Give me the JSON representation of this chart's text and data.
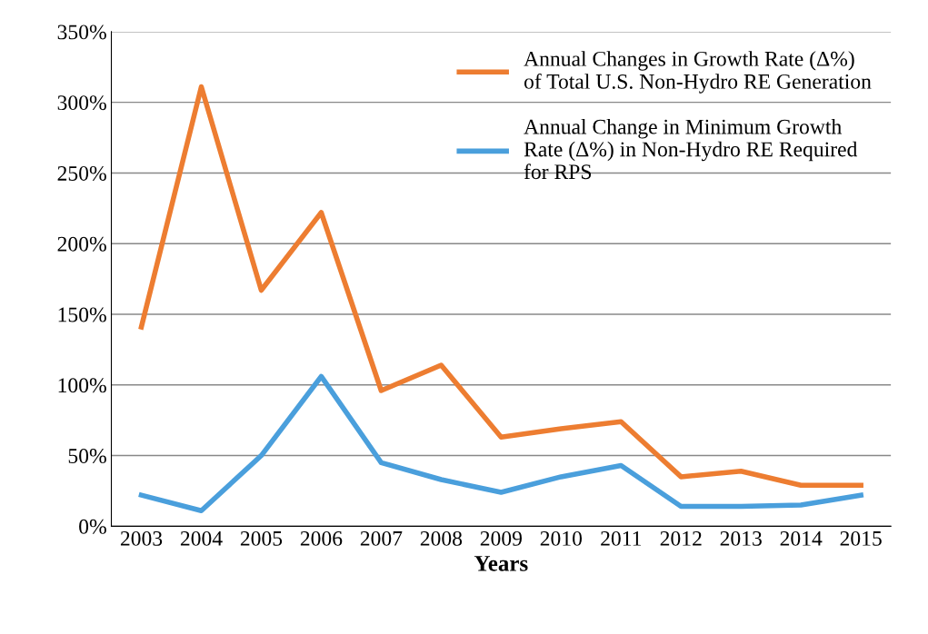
{
  "chart_data": {
    "type": "line",
    "xlabel": "Years",
    "categories": [
      "2003",
      "2004",
      "2005",
      "2006",
      "2007",
      "2008",
      "2009",
      "2010",
      "2011",
      "2012",
      "2013",
      "2014",
      "2015"
    ],
    "series": [
      {
        "name": "Annual Changes in Growth Rate (Δ%)\nof Total U.S. Non-Hydro RE Generation",
        "color": "#ed7d31",
        "values": [
          141,
          311,
          167,
          222,
          96,
          114,
          63,
          69,
          74,
          35,
          39,
          29,
          29
        ]
      },
      {
        "name": "Annual Change in Minimum Growth\nRate (Δ%) in Non-Hydro RE Required\nfor RPS",
        "color": "#4a9fdc",
        "values": [
          22,
          11,
          50,
          106,
          45,
          33,
          24,
          35,
          43,
          14,
          14,
          15,
          22
        ]
      }
    ],
    "ylim": [
      0,
      350
    ],
    "yticks": [
      {
        "value": 0,
        "label": "0%"
      },
      {
        "value": 50,
        "label": "50%"
      },
      {
        "value": 100,
        "label": "100%"
      },
      {
        "value": 150,
        "label": "150%"
      },
      {
        "value": 200,
        "label": "200%"
      },
      {
        "value": 250,
        "label": "250%"
      },
      {
        "value": 300,
        "label": "300%"
      },
      {
        "value": 350,
        "label": "350%"
      }
    ],
    "grid": "y",
    "legend": "top right",
    "marker": "none",
    "line_style": "solid"
  }
}
